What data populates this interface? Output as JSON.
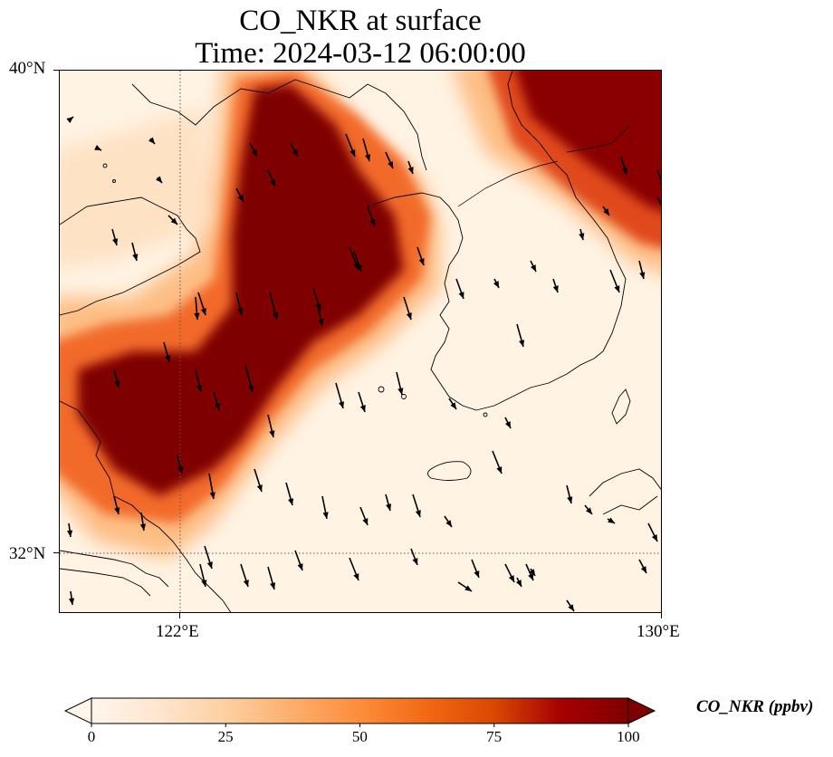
{
  "title": {
    "line1": "CO_NKR at surface",
    "line2": "Time: 2024-03-12 06:00:00"
  },
  "map": {
    "extent": {
      "lon_min": 120.0,
      "lon_max": 130.0,
      "lat_min": 31.0,
      "lat_max": 40.0
    },
    "projection": "PlateCarree",
    "gridlines": {
      "lons": [
        122,
        130
      ],
      "lats": [
        32,
        40
      ],
      "style": "dotted"
    },
    "lat_labels": [
      "40°N",
      "32°N"
    ],
    "lon_labels": [
      "122°E",
      "130°E"
    ],
    "field": "CO_NKR",
    "level": "surface",
    "overlay": "wind-vectors",
    "colormap": [
      "#fff5eb",
      "#fee6ce",
      "#fdd0a2",
      "#fdae6b",
      "#fd8d3c",
      "#f16913",
      "#d94801",
      "#a60000",
      "#7f0000"
    ]
  },
  "colorbar": {
    "label": "CO_NKR (ppbv)",
    "min": 0,
    "max": 100,
    "ticks": [
      "0",
      "25",
      "50",
      "75",
      "100"
    ],
    "extend": "both"
  }
}
